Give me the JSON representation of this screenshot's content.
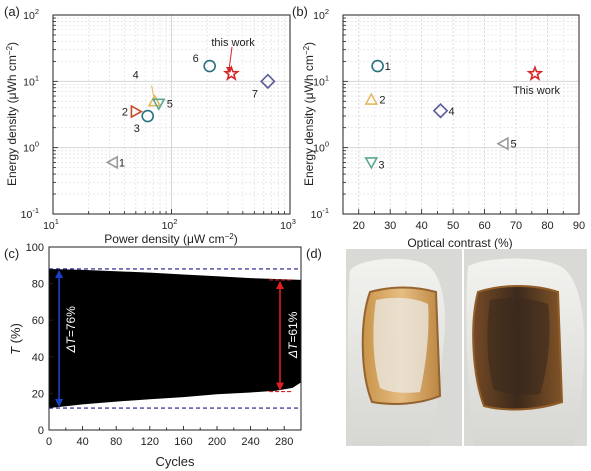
{
  "colors": {
    "star": "#d62728",
    "tri_left_gray": "#9a9a9a",
    "tri_right_red": "#c8482a",
    "circle_teal": "#2a7080",
    "tri_down_green": "#5aa88c",
    "tri_up_yellow": "#e3b862",
    "diamond_navy": "#5a5a99",
    "dashed_navy": "#1a1a8c",
    "blue_arrow": "#1a3fc8",
    "red_arrow": "#e02020",
    "fill_black": "#000000"
  },
  "chart_data": [
    {
      "panel_label": "(a)",
      "type": "scatter",
      "xlabel_parts": [
        "Power density (μW cm",
        "−2",
        ")"
      ],
      "ylabel_parts": [
        "Energy density (μWh cm",
        "−2",
        ")"
      ],
      "xscale": "log",
      "yscale": "log",
      "xlim": [
        10,
        1000
      ],
      "ylim": [
        0.1,
        100
      ],
      "xtick_values": [
        10,
        100,
        1000
      ],
      "xtick_bases": [
        "10",
        "10",
        "10"
      ],
      "xtick_exps": [
        "1",
        "2",
        "3"
      ],
      "ytick_values": [
        0.1,
        1,
        10,
        100
      ],
      "ytick_bases": [
        "10",
        "10",
        "10",
        "10"
      ],
      "ytick_exps": [
        "-1",
        "0",
        "1",
        "2"
      ],
      "grid": true,
      "points": [
        {
          "label": "1",
          "x": 32,
          "y": 0.6,
          "marker": "triangle-left",
          "color": "#9a9a9a"
        },
        {
          "label": "2",
          "x": 50,
          "y": 3.5,
          "marker": "triangle-right",
          "color": "#c8482a"
        },
        {
          "label": "3",
          "x": 63,
          "y": 3.0,
          "marker": "circle",
          "color": "#2a7080"
        },
        {
          "label": "4",
          "x": 72,
          "y": 5.0,
          "marker": "triangle-up",
          "color": "#e3b862"
        },
        {
          "label": "5",
          "x": 78,
          "y": 4.6,
          "marker": "triangle-down",
          "color": "#5aa88c"
        },
        {
          "label": "6",
          "x": 210,
          "y": 17,
          "marker": "circle",
          "color": "#2a7080"
        },
        {
          "label": "7",
          "x": 650,
          "y": 10,
          "marker": "diamond",
          "color": "#5a5a99"
        },
        {
          "label": "this work",
          "x": 320,
          "y": 13,
          "marker": "star",
          "color": "#d62728"
        }
      ]
    },
    {
      "panel_label": "(b)",
      "type": "scatter",
      "xlabel": "Optical contrast (%)",
      "ylabel_parts": [
        "Energy density (μWh cm",
        "−2",
        ")"
      ],
      "yscale": "log",
      "xlim": [
        15,
        90
      ],
      "ylim": [
        0.1,
        100
      ],
      "xticks": [
        "20",
        "30",
        "40",
        "50",
        "60",
        "70",
        "80",
        "90"
      ],
      "ytick_values": [
        0.1,
        1,
        10,
        100
      ],
      "ytick_bases": [
        "10",
        "10",
        "10",
        "10"
      ],
      "ytick_exps": [
        "-1",
        "0",
        "1",
        "2"
      ],
      "grid": true,
      "points": [
        {
          "label": "1",
          "x": 26,
          "y": 17,
          "marker": "circle",
          "color": "#2a7080"
        },
        {
          "label": "2",
          "x": 24,
          "y": 5.3,
          "marker": "triangle-up",
          "color": "#e3b862"
        },
        {
          "label": "3",
          "x": 24,
          "y": 0.6,
          "marker": "triangle-down",
          "color": "#5aa88c"
        },
        {
          "label": "4",
          "x": 46,
          "y": 3.6,
          "marker": "diamond",
          "color": "#5a5a99"
        },
        {
          "label": "5",
          "x": 66,
          "y": 1.15,
          "marker": "triangle-left",
          "color": "#9a9a9a"
        },
        {
          "label": "This work",
          "x": 76,
          "y": 13,
          "marker": "star",
          "color": "#d62728"
        }
      ]
    },
    {
      "panel_label": "(c)",
      "type": "area",
      "xlabel": "Cycles",
      "ylabel_italic": "T",
      "ylabel_rest": " (%)",
      "xlim": [
        0,
        300
      ],
      "ylim": [
        0,
        100
      ],
      "xticks": [
        "0",
        "40",
        "80",
        "120",
        "160",
        "200",
        "240",
        "280"
      ],
      "yticks": [
        "0",
        "20",
        "40",
        "60",
        "80",
        "100"
      ],
      "upper_envelope": [
        [
          0,
          88
        ],
        [
          40,
          87.5
        ],
        [
          80,
          86.8
        ],
        [
          120,
          86
        ],
        [
          160,
          85
        ],
        [
          200,
          84
        ],
        [
          240,
          83
        ],
        [
          270,
          82.5
        ],
        [
          300,
          82
        ]
      ],
      "lower_envelope": [
        [
          0,
          12
        ],
        [
          20,
          13
        ],
        [
          40,
          14
        ],
        [
          80,
          15.5
        ],
        [
          120,
          16.8
        ],
        [
          160,
          18
        ],
        [
          200,
          19.5
        ],
        [
          240,
          20.5
        ],
        [
          270,
          21.5
        ],
        [
          290,
          23
        ],
        [
          300,
          26
        ]
      ],
      "reference_lines": [
        88,
        12
      ],
      "arrow_left": {
        "x": 12,
        "from": 88,
        "to": 12,
        "text_italic": "ΔT",
        "text_rest": "=76%"
      },
      "arrow_right": {
        "x": 275,
        "from": 82,
        "to": 21,
        "text_italic": "ΔT",
        "text_rest": "=61%"
      },
      "short_dashes": [
        82,
        21
      ]
    }
  ],
  "panel_d": {
    "label": "(d)"
  }
}
